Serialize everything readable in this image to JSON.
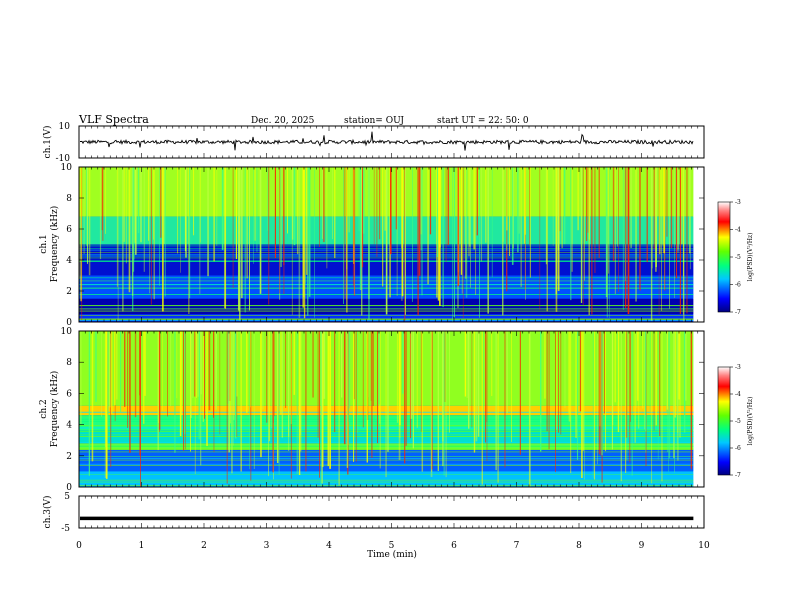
{
  "header": {
    "title": "VLF Spectra",
    "date": "Dec. 20, 2025",
    "station": "station= OUJ",
    "start": "start  UT  =   22: 50: 0"
  },
  "chart_data": [
    {
      "type": "line",
      "panel": "ch1-waveform",
      "ylabel": "ch.1(V)",
      "ylim": [
        -10,
        10
      ],
      "y_ticks": [
        "10",
        "-10"
      ],
      "x_range": [
        0,
        10
      ],
      "baseline": 0
    },
    {
      "type": "heatmap",
      "panel": "ch1-spectrogram",
      "ylabel_line1": "ch.1",
      "ylabel_line2": "Frequency (kHz)",
      "ylim": [
        0,
        10
      ],
      "y_ticks": [
        "0",
        "2",
        "4",
        "6",
        "8",
        "10"
      ],
      "data_end_min": 9.83,
      "colorbar": {
        "label": "log(PSD)(V²/Hz)",
        "ticks": [
          "-3",
          "-4",
          "-5",
          "-6",
          "-7"
        ],
        "range": [
          -7,
          -3
        ]
      }
    },
    {
      "type": "heatmap",
      "panel": "ch2-spectrogram",
      "ylabel_line1": "ch.2",
      "ylabel_line2": "Frequency (kHz)",
      "ylim": [
        0,
        10
      ],
      "y_ticks": [
        "0",
        "2",
        "4",
        "6",
        "8",
        "10"
      ],
      "data_end_min": 9.83,
      "colorbar": {
        "label": "log(PSD)(V²/Hz)",
        "ticks": [
          "-3",
          "-4",
          "-5",
          "-6",
          "-7"
        ],
        "range": [
          -7,
          -3
        ]
      }
    },
    {
      "type": "line",
      "panel": "ch3-waveform",
      "ylabel": "ch.3(V)",
      "ylim": [
        -5,
        5
      ],
      "y_ticks": [
        "5",
        "-5"
      ],
      "x_range": [
        0,
        9.83
      ],
      "baseline": -2
    }
  ],
  "x_axis": {
    "label": "Time (min)",
    "ticks": [
      "0",
      "1",
      "2",
      "3",
      "4",
      "5",
      "6",
      "7",
      "8",
      "9",
      "10"
    ],
    "range": [
      0,
      10
    ]
  },
  "colormap": [
    "#000080",
    "#0000ff",
    "#0080ff",
    "#00ffff",
    "#00ff80",
    "#80ff00",
    "#ffff00",
    "#ff8000",
    "#ff0000",
    "#ffffff"
  ]
}
